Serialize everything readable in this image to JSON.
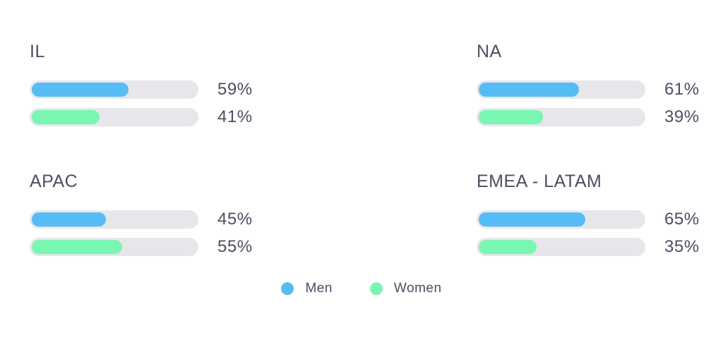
{
  "chart_data": {
    "type": "bar",
    "orientation": "horizontal",
    "unit": "%",
    "value_range": [
      0,
      100
    ],
    "grid": false,
    "legend_position": "bottom-center",
    "sections": [
      {
        "region": "IL",
        "men": 59,
        "women": 41,
        "men_label": "59%",
        "women_label": "41%"
      },
      {
        "region": "NA",
        "men": 61,
        "women": 39,
        "men_label": "61%",
        "women_label": "39%"
      },
      {
        "region": "APAC",
        "men": 45,
        "women": 55,
        "men_label": "45%",
        "women_label": "55%"
      },
      {
        "region": "EMEA - LATAM",
        "men": 65,
        "women": 35,
        "men_label": "65%",
        "women_label": "35%"
      }
    ],
    "legend": [
      {
        "label": "Men",
        "color": "#56bcf5"
      },
      {
        "label": "Women",
        "color": "#79f6b2"
      }
    ],
    "colors": {
      "men_fill": "#56bcf5",
      "women_fill": "#79f6b2",
      "track": "#e7e7eb",
      "text": "#4e4d63"
    }
  }
}
